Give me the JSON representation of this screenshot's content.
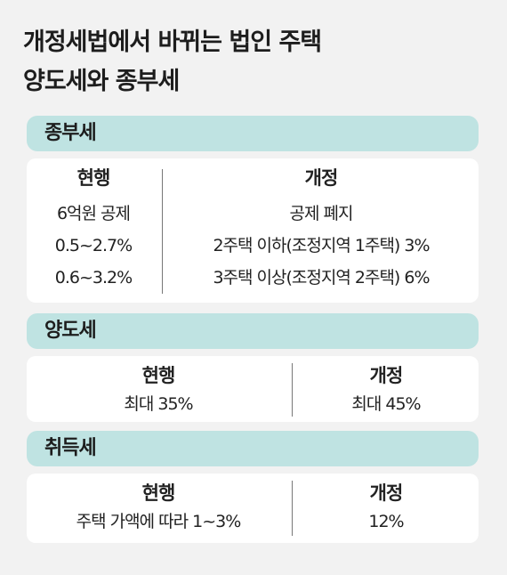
{
  "title": {
    "line1": "개정세법에서 바뀌는 법인 주택",
    "line2": "양도세와 종부세"
  },
  "sections": [
    {
      "name": "종부세",
      "current_header": "현행",
      "revised_header": "개정",
      "current_rows": [
        "6억원 공제",
        "0.5~2.7%",
        "0.6~3.2%"
      ],
      "revised_rows": [
        "공제 폐지",
        "2주택 이하(조정지역 1주택) 3%",
        "3주택 이상(조정지역 2주택) 6%"
      ]
    },
    {
      "name": "양도세",
      "current_header": "현행",
      "revised_header": "개정",
      "current_rows": [
        "최대 35%"
      ],
      "revised_rows": [
        "최대 45%"
      ]
    },
    {
      "name": "취득세",
      "current_header": "현행",
      "revised_header": "개정",
      "current_rows": [
        "주택 가액에 따라 1~3%"
      ],
      "revised_rows": [
        "12%"
      ]
    }
  ]
}
